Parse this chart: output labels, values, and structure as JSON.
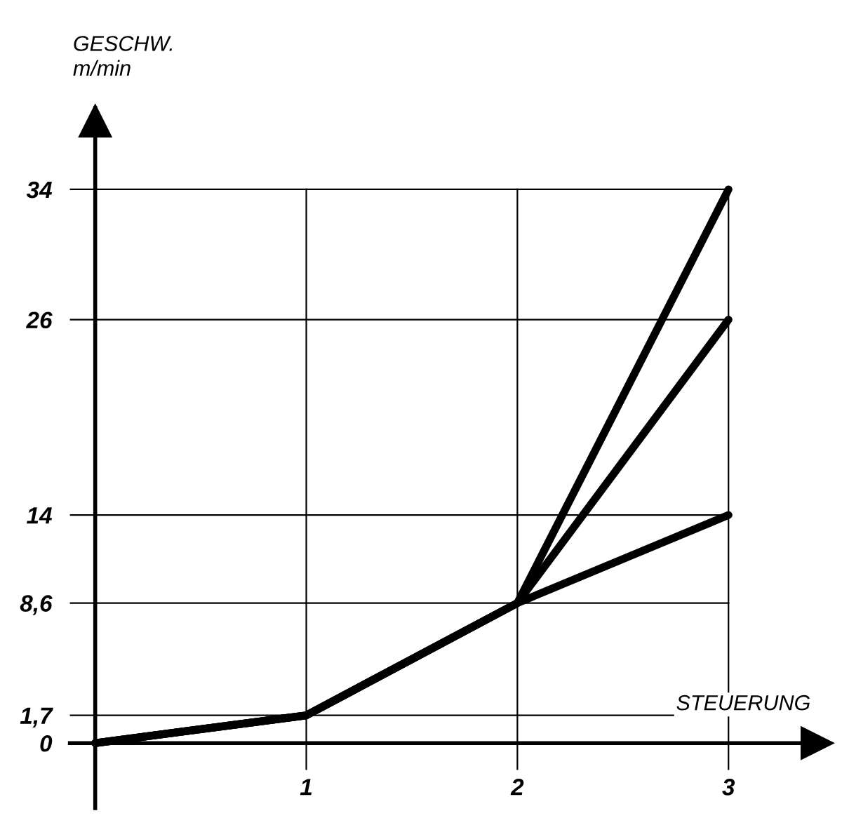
{
  "chart_data": {
    "type": "line",
    "xlabel": "STEUERUNG",
    "ylabel": "GESCHW.\nm/min",
    "x": [
      0,
      1,
      2,
      3
    ],
    "series": [
      {
        "color": "#000000",
        "values": [
          0,
          1.7,
          8.6,
          14
        ]
      },
      {
        "color": "#000000",
        "values": [
          0,
          1.7,
          8.6,
          26
        ]
      },
      {
        "color": "#000000",
        "values": [
          0,
          1.7,
          8.6,
          34
        ]
      }
    ],
    "xlim": [
      -0.12,
      3.45
    ],
    "ylim": [
      -4,
      39
    ],
    "xticks": [
      1,
      2,
      3
    ],
    "yticks": [
      0,
      {
        "value": 1.7,
        "label": "1,7"
      },
      {
        "value": 8.6,
        "label": "8,6"
      },
      14,
      26,
      34
    ],
    "grid": true,
    "marker": "none",
    "line_style": "solid",
    "legend": false
  }
}
